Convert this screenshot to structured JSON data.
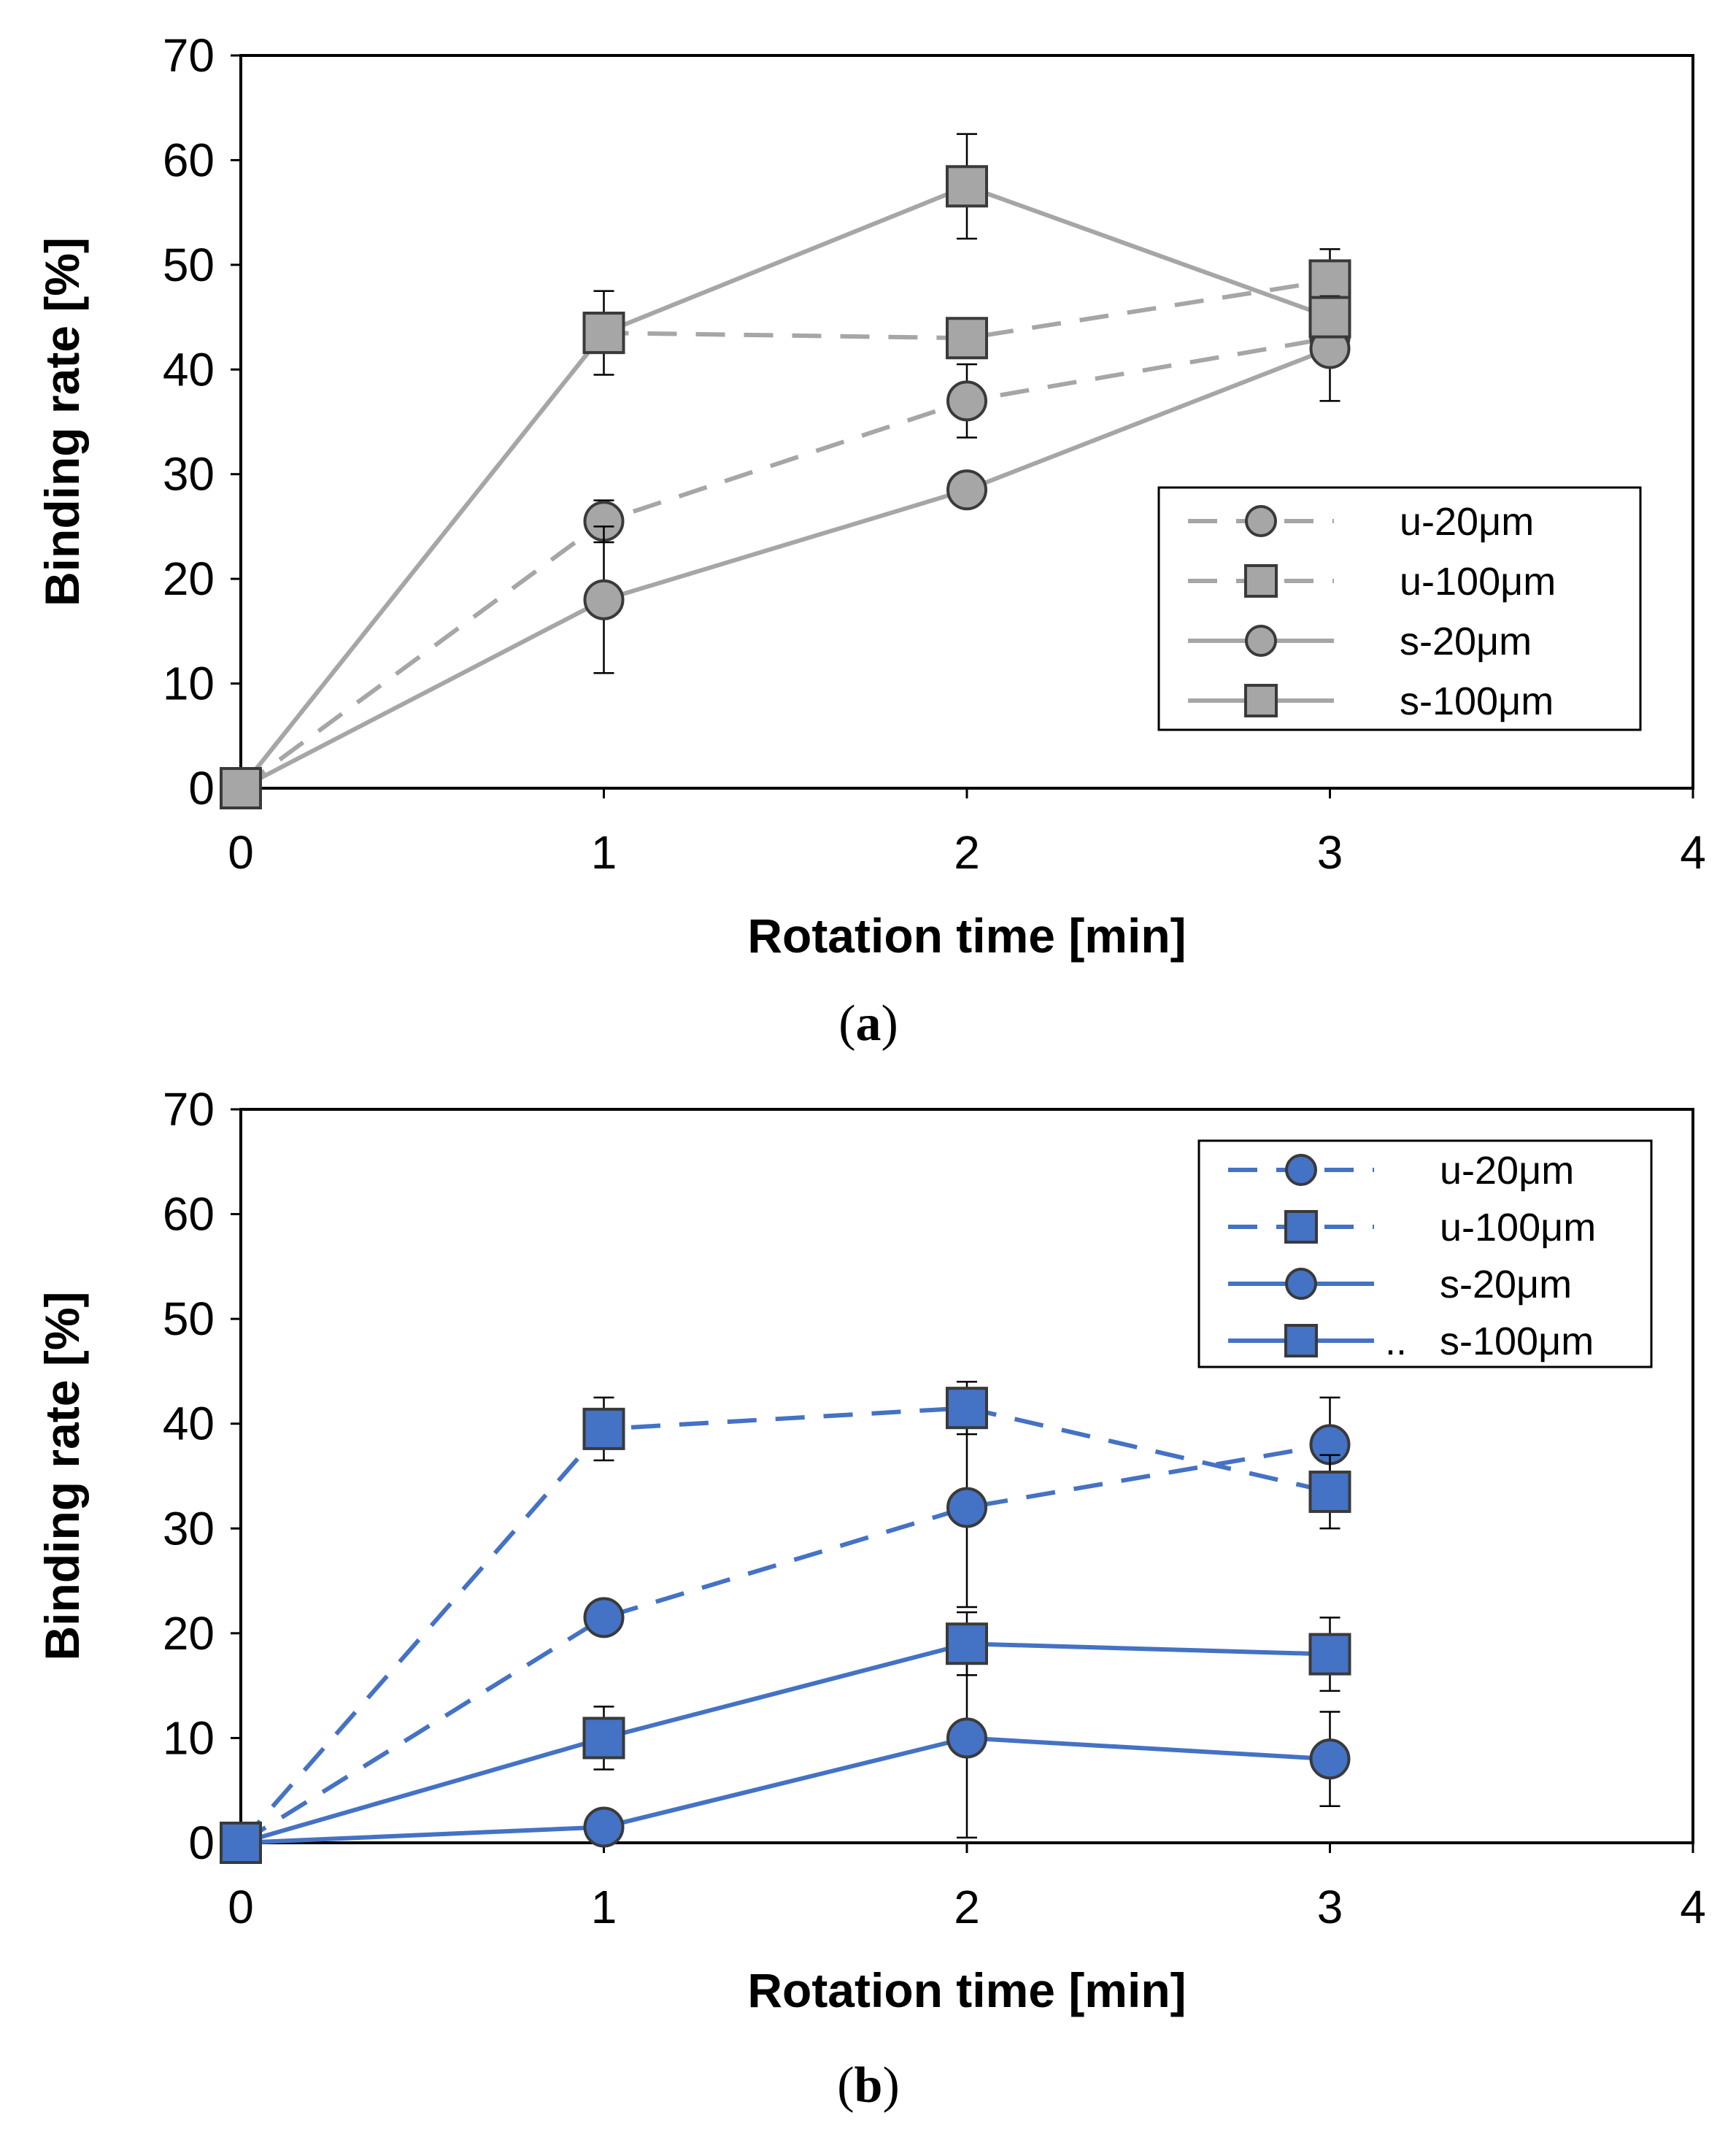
{
  "chart_data": [
    {
      "type": "line",
      "caption_letter": "a",
      "xlabel": "Rotation time [min]",
      "ylabel": "Binding rate [%]",
      "xlim": [
        0,
        4
      ],
      "ylim": [
        0,
        70
      ],
      "x_ticks": [
        0,
        1,
        2,
        3,
        4
      ],
      "y_ticks": [
        0,
        10,
        20,
        30,
        40,
        50,
        60,
        70
      ],
      "grid": false,
      "legend_position": "right-middle",
      "color": "#a6a6a6",
      "series": [
        {
          "name": "u-20μm",
          "marker": "circle",
          "line": "dashed",
          "x": [
            0,
            1,
            2,
            3
          ],
          "values": [
            0,
            25.5,
            37,
            43
          ],
          "errors": [
            0,
            2,
            3.5,
            0
          ]
        },
        {
          "name": "u-100μm",
          "marker": "square",
          "line": "dashed",
          "x": [
            0,
            1,
            2,
            3
          ],
          "values": [
            0,
            43.5,
            43,
            48.5
          ],
          "errors": [
            0,
            0,
            0,
            3
          ]
        },
        {
          "name": "s-20μm",
          "marker": "circle",
          "line": "solid",
          "x": [
            0,
            1,
            2,
            3
          ],
          "values": [
            0,
            18,
            28.5,
            42
          ],
          "errors": [
            0,
            7,
            0,
            5
          ]
        },
        {
          "name": "s-100μm",
          "marker": "square",
          "line": "solid",
          "x": [
            0,
            1,
            2,
            3
          ],
          "values": [
            0,
            43.5,
            57.5,
            45
          ],
          "errors": [
            0,
            4,
            5,
            0
          ]
        }
      ]
    },
    {
      "type": "line",
      "caption_letter": "b",
      "xlabel": "Rotation time [min]",
      "ylabel": "Binding rate [%]",
      "xlim": [
        0,
        4
      ],
      "ylim": [
        0,
        70
      ],
      "x_ticks": [
        0,
        1,
        2,
        3,
        4
      ],
      "y_ticks": [
        0,
        10,
        20,
        30,
        40,
        50,
        60,
        70
      ],
      "grid": false,
      "legend_position": "top-right",
      "color": "#4472c4",
      "series": [
        {
          "name": "u-20μm",
          "marker": "circle",
          "line": "dashed",
          "x": [
            0,
            1,
            2,
            3
          ],
          "values": [
            0,
            21.5,
            32,
            38
          ],
          "errors": [
            0,
            0,
            9.5,
            4.5
          ]
        },
        {
          "name": "u-100μm",
          "marker": "square",
          "line": "dashed",
          "x": [
            0,
            1,
            2,
            3
          ],
          "values": [
            0,
            39.5,
            41.5,
            33.5
          ],
          "errors": [
            0,
            3,
            2.5,
            3.5
          ]
        },
        {
          "name": "s-20μm",
          "marker": "circle",
          "line": "solid",
          "x": [
            0,
            1,
            2,
            3
          ],
          "values": [
            0,
            1.5,
            10,
            8
          ],
          "errors": [
            0,
            0,
            9.5,
            4.5
          ]
        },
        {
          "name": "s-100μm",
          "marker": "square",
          "line": "solid",
          "x": [
            0,
            1,
            2,
            3
          ],
          "values": [
            0,
            10,
            19,
            18
          ],
          "errors": [
            0,
            3,
            3,
            3.5
          ]
        }
      ],
      "legend_last_prefix": ".."
    }
  ]
}
